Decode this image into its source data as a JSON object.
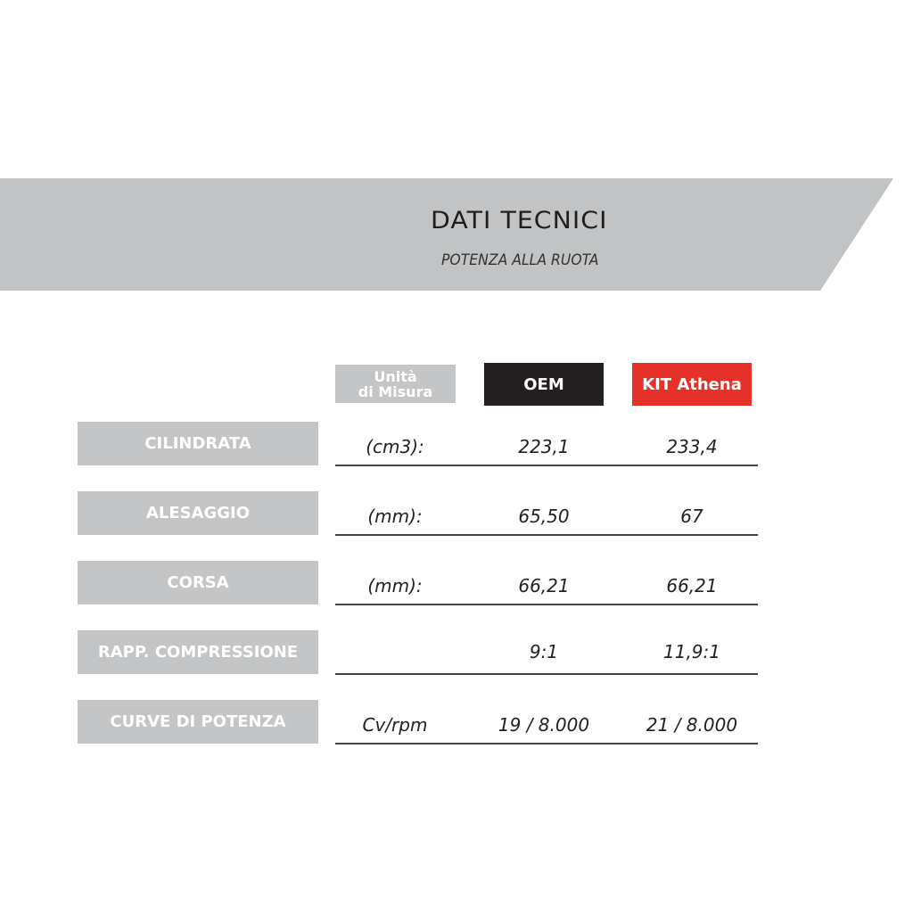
{
  "header": {
    "title": "DATI TECNICI",
    "subtitle": "POTENZA ALLA RUOTA",
    "banner_color": "#c2c3c4"
  },
  "columns": {
    "unit": [
      "Unità",
      "di Misura"
    ],
    "oem": "OEM",
    "kit": "KIT Athena",
    "oem_color": "#231f20",
    "kit_color": "#e5312a"
  },
  "rows": [
    {
      "label": "CILINDRATA",
      "unit": "(cm3):",
      "oem": "223,1",
      "kit": "233,4"
    },
    {
      "label": "ALESAGGIO",
      "unit": "(mm):",
      "oem": "65,50",
      "kit": "67"
    },
    {
      "label": "CORSA",
      "unit": "(mm):",
      "oem": "66,21",
      "kit": "66,21"
    },
    {
      "label": "RAPP. COMPRESSIONE",
      "unit": "",
      "oem": "9:1",
      "kit": "11,9:1"
    },
    {
      "label": "CURVE DI POTENZA",
      "unit": "Cv/rpm",
      "oem": "19 / 8.000",
      "kit": "21 / 8.000"
    }
  ]
}
